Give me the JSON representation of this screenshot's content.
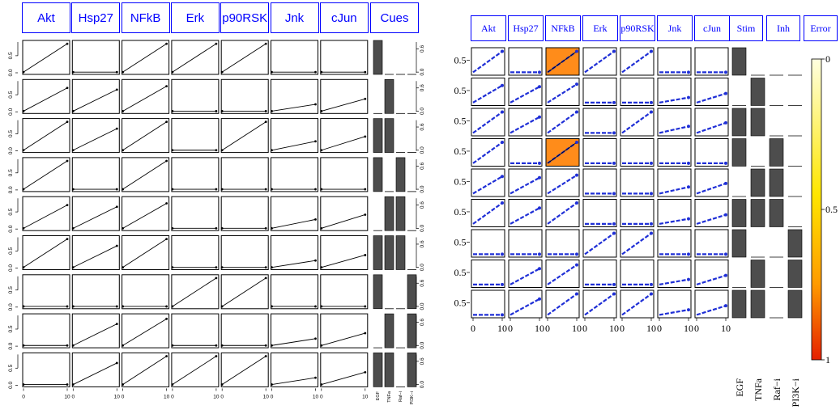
{
  "chart_data": [
    {
      "type": "line",
      "panel": "data",
      "columns": [
        "Akt",
        "Hsp27",
        "NFkB",
        "Erk",
        "p90RSK",
        "Jnk",
        "cJun"
      ],
      "cues_header": "Cues",
      "cue_names": [
        "EGF",
        "TNFa",
        "Raf−i",
        "PI3K−i"
      ],
      "x": [
        0,
        10
      ],
      "x_ticks": [
        "0",
        "10"
      ],
      "y_ticks_left": [
        "0.0",
        "0.5"
      ],
      "y_ticks_right": [
        "0.0",
        "0.6"
      ],
      "cues": [
        [
          1,
          0,
          0,
          0
        ],
        [
          0,
          1,
          0,
          0
        ],
        [
          1,
          1,
          0,
          0
        ],
        [
          1,
          0,
          1,
          0
        ],
        [
          0,
          1,
          1,
          0
        ],
        [
          1,
          1,
          1,
          0
        ],
        [
          1,
          0,
          0,
          1
        ],
        [
          0,
          1,
          0,
          1
        ],
        [
          1,
          1,
          0,
          1
        ]
      ],
      "endpoints": [
        [
          0.85,
          0.02,
          0.85,
          0.85,
          0.85,
          0.02,
          0.02
        ],
        [
          0.7,
          0.65,
          0.75,
          0.02,
          0.02,
          0.22,
          0.38
        ],
        [
          0.85,
          0.65,
          0.85,
          0.02,
          0.85,
          0.28,
          0.42
        ],
        [
          0.85,
          0.02,
          0.85,
          0.02,
          0.02,
          0.02,
          0.02
        ],
        [
          0.7,
          0.65,
          0.75,
          0.02,
          0.02,
          0.28,
          0.42
        ],
        [
          0.85,
          0.65,
          0.85,
          0.02,
          0.02,
          0.22,
          0.38
        ],
        [
          0.02,
          0.02,
          0.02,
          0.85,
          0.85,
          0.02,
          0.02
        ],
        [
          0.02,
          0.65,
          0.8,
          0.02,
          0.02,
          0.22,
          0.38
        ],
        [
          0.02,
          0.65,
          0.85,
          0.85,
          0.85,
          0.22,
          0.38
        ]
      ]
    },
    {
      "type": "line",
      "panel": "fit",
      "columns": [
        "Akt",
        "Hsp27",
        "NFkB",
        "Erk",
        "p90RSK",
        "Jnk",
        "cJun"
      ],
      "extra_headers": [
        "Stim",
        "Inh",
        "Error"
      ],
      "x_ticks": [
        "0",
        "10"
      ],
      "y_tick": "0.5",
      "stim_names": [
        "EGF",
        "TNFa"
      ],
      "inh_names": [
        "Raf−i",
        "PI3K−i"
      ],
      "error_cells": [
        [
          0,
          2
        ],
        [
          3,
          2
        ]
      ],
      "error_color": "#ff8c1a",
      "fit_color": "#1f2fd6",
      "colorbar": {
        "ticks": [
          "0",
          "0.5",
          "1"
        ],
        "low_color": "#ffffe0",
        "high_color": "#e52000"
      }
    }
  ]
}
